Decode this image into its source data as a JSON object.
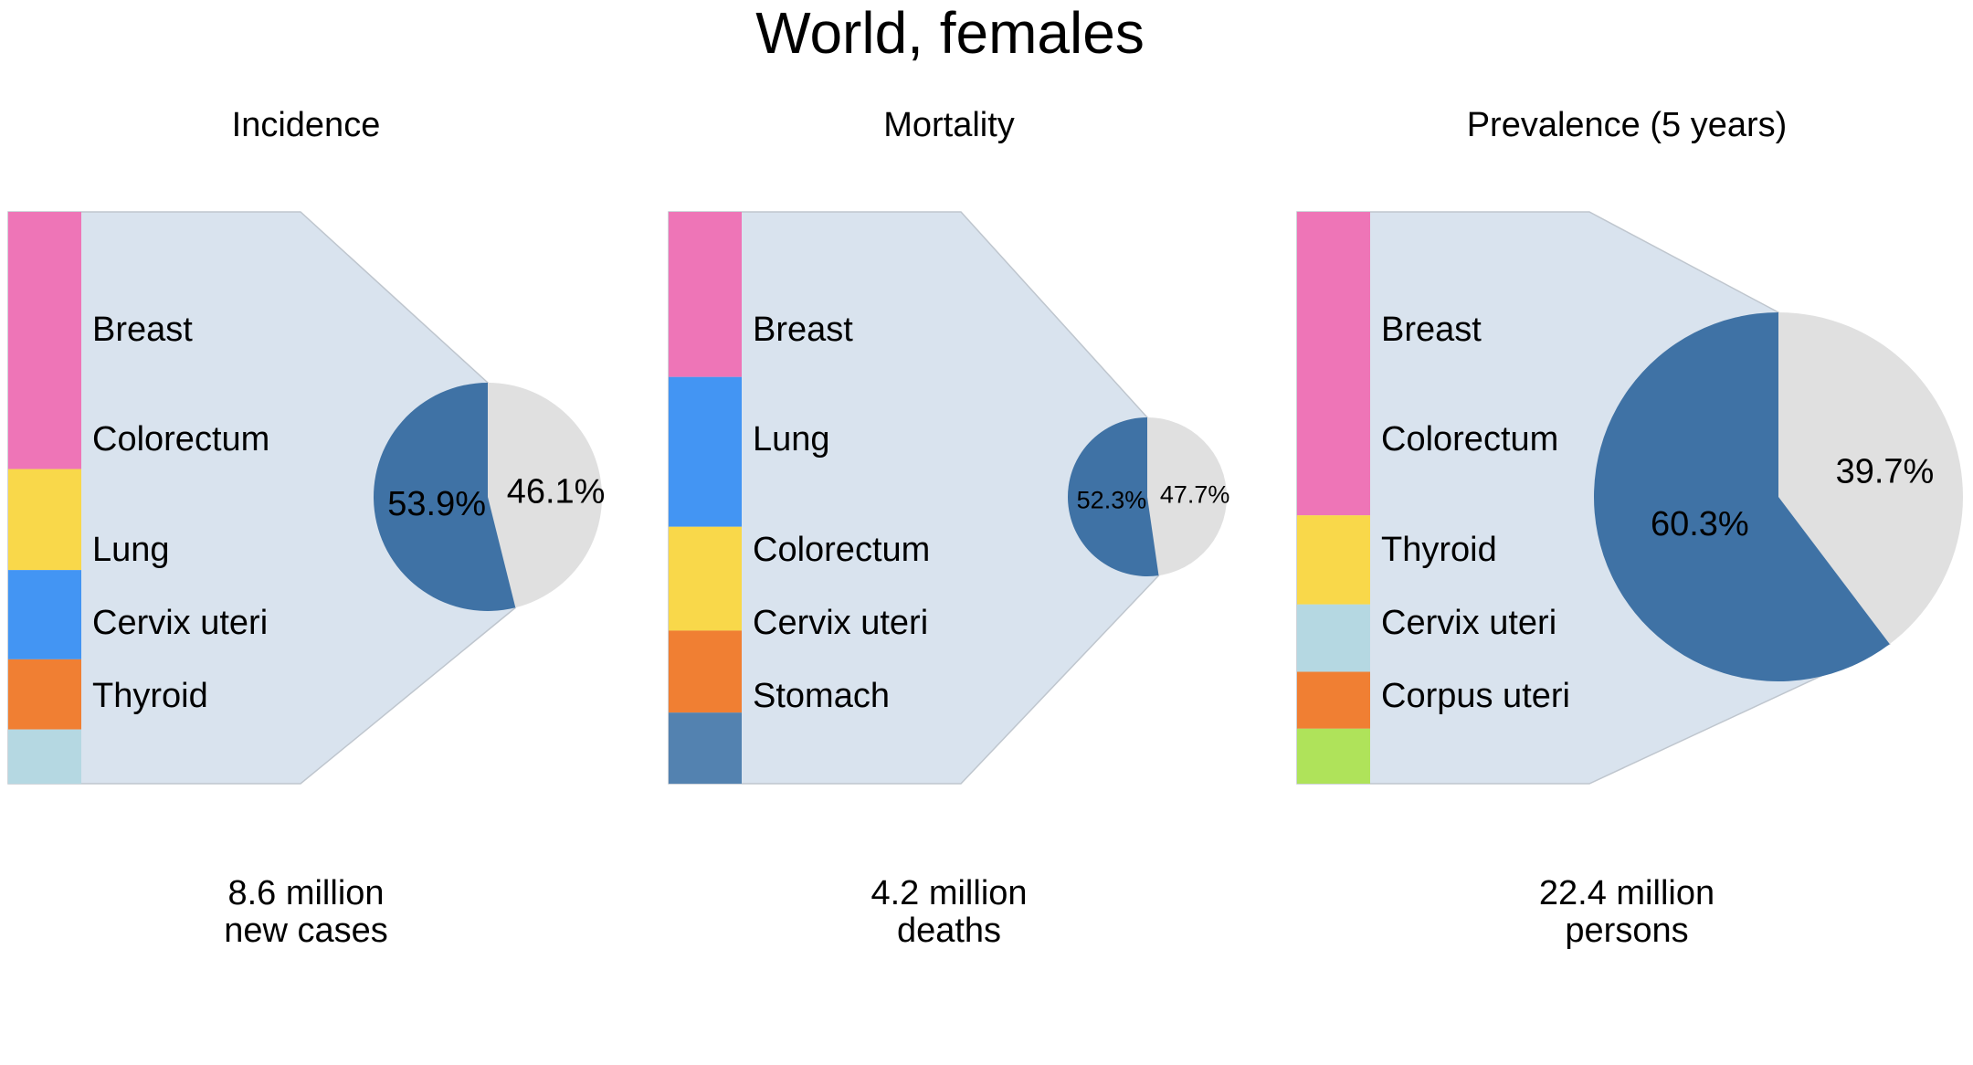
{
  "title": "World, females",
  "colors": {
    "panel_fill": "#d9e3ee",
    "panel_stroke": "#bfc6ce",
    "pie_selected": "#3f72a5",
    "pie_other": "#e0e0e0"
  },
  "chart_data": [
    {
      "type": "pie",
      "subtitle": "Incidence",
      "stack": [
        {
          "label": "Breast",
          "value": 24.2,
          "color": "#ee75b7"
        },
        {
          "label": "Colorectum",
          "value": 9.5,
          "color": "#f9d84a"
        },
        {
          "label": "Lung",
          "value": 8.4,
          "color": "#4395f3"
        },
        {
          "label": "Cervix uteri",
          "value": 6.6,
          "color": "#f07f33"
        },
        {
          "label": "Thyroid",
          "value": 5.1,
          "color": "#b5d8e2"
        }
      ],
      "labels": [
        "Breast",
        "Colorectum",
        "Lung",
        "Cervix uteri",
        "Thyroid"
      ],
      "pie": [
        {
          "label": "53.9%",
          "value": 53.9
        },
        {
          "label": "46.1%",
          "value": 46.1
        }
      ],
      "footer": [
        "8.6 million",
        "new cases"
      ]
    },
    {
      "type": "pie",
      "subtitle": "Mortality",
      "stack": [
        {
          "label": "Breast",
          "value": 15.1,
          "color": "#ee75b7"
        },
        {
          "label": "Lung",
          "value": 13.7,
          "color": "#4395f3"
        },
        {
          "label": "Colorectum",
          "value": 9.5,
          "color": "#f9d84a"
        },
        {
          "label": "Cervix uteri",
          "value": 7.5,
          "color": "#f07f33"
        },
        {
          "label": "Stomach",
          "value": 6.5,
          "color": "#5382b0"
        }
      ],
      "labels": [
        "Breast",
        "Lung",
        "Colorectum",
        "Cervix uteri",
        "Stomach"
      ],
      "pie": [
        {
          "label": "52.3%",
          "value": 52.3
        },
        {
          "label": "47.7%",
          "value": 47.7
        }
      ],
      "footer": [
        "4.2 million",
        "deaths"
      ]
    },
    {
      "type": "pie",
      "subtitle": "Prevalence (5 years)",
      "stack": [
        {
          "label": "Breast",
          "value": 32.0,
          "color": "#ee75b7"
        },
        {
          "label": "Colorectum",
          "value": 9.4,
          "color": "#f9d84a"
        },
        {
          "label": "Thyroid",
          "value": 7.1,
          "color": "#b5d8e2"
        },
        {
          "label": "Cervix uteri",
          "value": 6.0,
          "color": "#f07f33"
        },
        {
          "label": "Corpus uteri",
          "value": 5.8,
          "color": "#afe35a"
        }
      ],
      "labels": [
        "Breast",
        "Colorectum",
        "Thyroid",
        "Cervix uteri",
        "Corpus uteri"
      ],
      "pie": [
        {
          "label": "60.3%",
          "value": 60.3
        },
        {
          "label": "39.7%",
          "value": 39.7
        }
      ],
      "footer": [
        "22.4 million",
        "persons"
      ]
    }
  ]
}
